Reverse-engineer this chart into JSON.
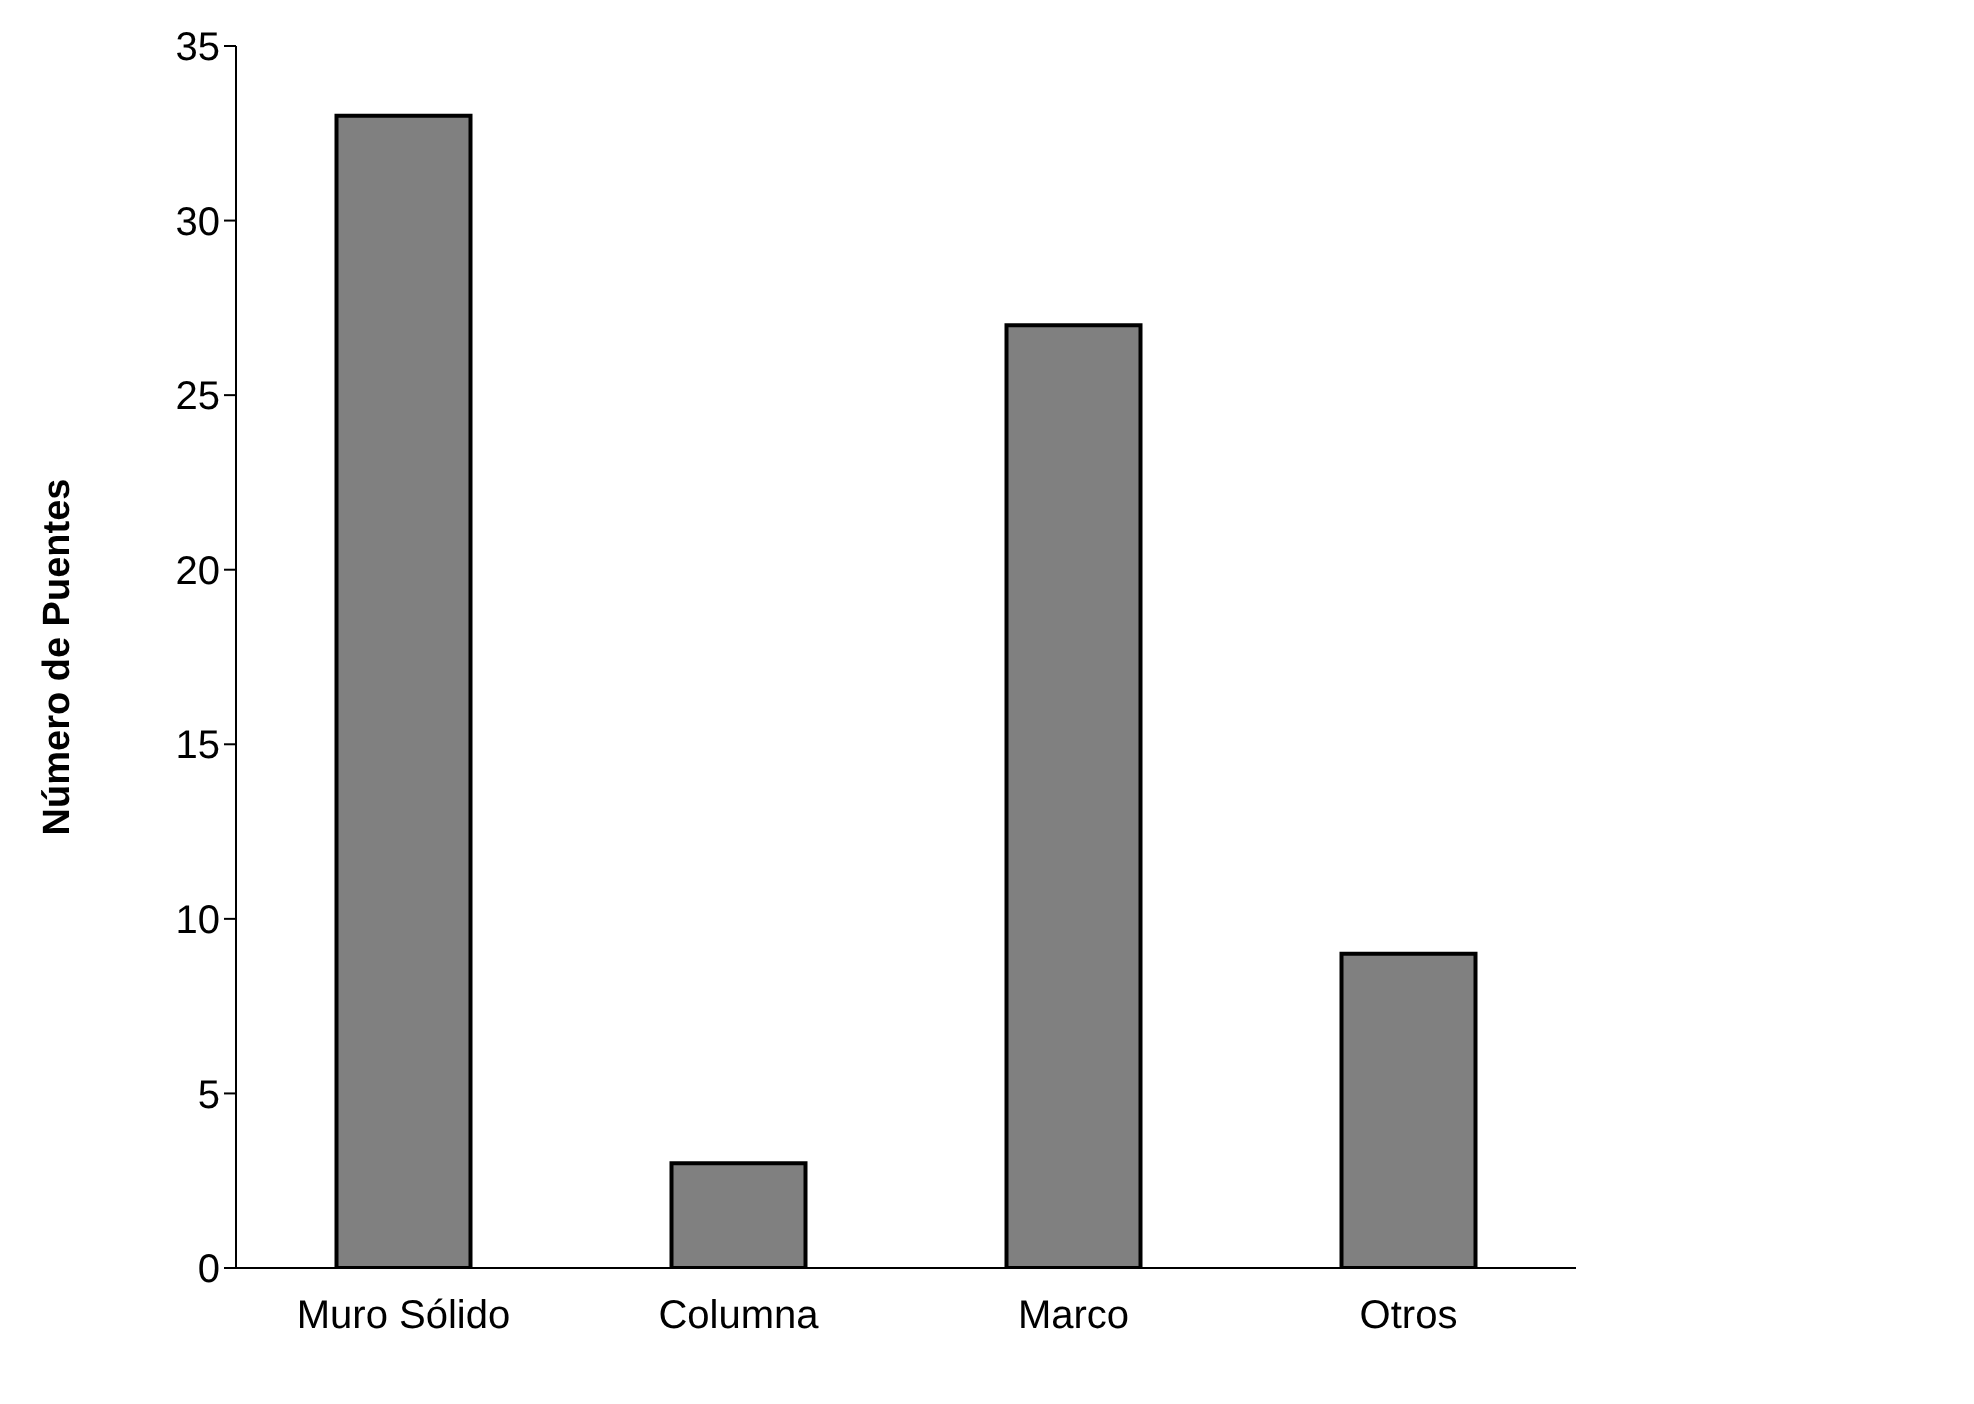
{
  "chart_data": {
    "type": "bar",
    "ylabel": "Número de Puentes",
    "categories": [
      "Muro Sólido",
      "Columna",
      "Marco",
      "Otros"
    ],
    "values": [
      33,
      3,
      27,
      9
    ],
    "color": "#808080",
    "ylim": [
      0,
      35
    ],
    "yticks": [
      0,
      5,
      10,
      15,
      20,
      25,
      30,
      35
    ],
    "grid": false,
    "legend": false
  }
}
